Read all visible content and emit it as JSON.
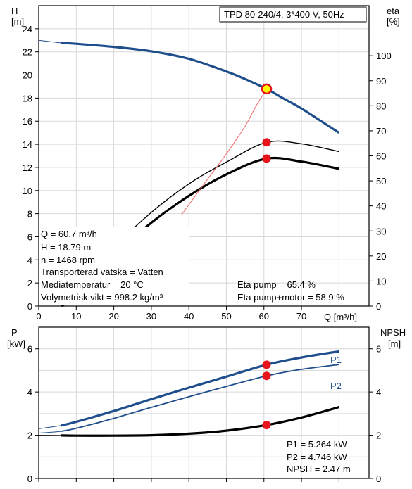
{
  "title_box": "TPD 80-240/4, 3*400 V, 50Hz",
  "colors": {
    "blue": "#1f4e8c",
    "red_marker": "#e8141c",
    "eta_thin": "#f26a6a",
    "grid": "#d8d8d8"
  },
  "top_axes": {
    "left_label_1": "H",
    "left_label_2": "[m]",
    "right_label_1": "eta",
    "right_label_2": "[%]",
    "x_label": "Q [m³/h]",
    "x_ticks": [
      "0",
      "10",
      "20",
      "30",
      "40",
      "50",
      "60",
      "70"
    ],
    "left_ticks": [
      "0",
      "2",
      "4",
      "6",
      "8",
      "10",
      "12",
      "14",
      "16",
      "18",
      "20",
      "22",
      "24"
    ],
    "right_ticks": [
      "0",
      "10",
      "20",
      "30",
      "40",
      "50",
      "60",
      "70",
      "80",
      "90",
      "100"
    ]
  },
  "bottom_axes": {
    "left_label_1": "P",
    "left_label_2": "[kW]",
    "right_label_1": "NPSH",
    "right_label_2": "[m]",
    "left_ticks": [
      "0",
      "2",
      "4",
      "6"
    ],
    "right_ticks": [
      "0",
      "2",
      "4",
      "6"
    ]
  },
  "info_left": [
    "Q = 60.7 m³/h",
    "H = 18.79 m",
    "n = 1468 rpm",
    "Transporterad vätska = Vatten",
    "Mediatemperatur = 20 °C",
    "Volymetrisk vikt = 998.2 kg/m³"
  ],
  "info_right": [
    "Eta pump = 65.4 %",
    "Eta pump+motor = 58.9 %"
  ],
  "info_bottom": [
    "P1 = 5.264 kW",
    "P2 = 4.746 kW",
    "NPSH = 2.47 m"
  ],
  "chart_data": [
    {
      "type": "line",
      "title": "TPD 80-240/4, 3*400 V, 50Hz",
      "xlabel": "Q [m³/h]",
      "ylabel": "H [m]",
      "y2label": "eta [%]",
      "xlim": [
        0,
        88
      ],
      "ylim": [
        0,
        26
      ],
      "y2lim": [
        0,
        120
      ],
      "series": [
        {
          "name": "H",
          "axis": "left",
          "x": [
            0,
            6,
            10,
            20,
            30,
            40,
            50,
            55,
            60.7,
            65,
            70,
            75,
            80
          ],
          "y": [
            23.0,
            22.78,
            22.7,
            22.43,
            22.05,
            21.4,
            20.3,
            19.65,
            18.79,
            18.0,
            17.1,
            16.05,
            15.0
          ]
        },
        {
          "name": "eta pump",
          "axis": "right",
          "x": [
            6,
            10,
            20,
            30,
            40,
            50,
            60.7,
            70,
            80
          ],
          "y": [
            0,
            6.7,
            23.4,
            37.4,
            48.8,
            57.5,
            65.4,
            64.8,
            61.7
          ]
        },
        {
          "name": "eta pump+motor",
          "axis": "right",
          "x": [
            6,
            10,
            20,
            30,
            40,
            50,
            60.7,
            70,
            80
          ],
          "y": [
            0,
            4.5,
            20.0,
            33.3,
            44.0,
            52.6,
            58.9,
            57.7,
            54.8
          ]
        },
        {
          "name": "eta duty line",
          "axis": "right",
          "x": [
            38,
            45,
            50,
            55,
            58,
            60.7
          ],
          "y": [
            36.4,
            50.7,
            60.8,
            71.9,
            80.2,
            86.5
          ]
        }
      ],
      "points": [
        {
          "name": "duty point H",
          "x": 60.7,
          "y": 18.79
        },
        {
          "name": "eta pump point",
          "x": 60.7,
          "y": 65.4
        },
        {
          "name": "eta pump+motor point",
          "x": 60.7,
          "y": 58.9
        }
      ],
      "grid": true
    },
    {
      "type": "line",
      "ylabel": "P [kW]",
      "y2label": "NPSH [m]",
      "xlim": [
        0,
        88
      ],
      "ylim": [
        0,
        7
      ],
      "y2lim": [
        0,
        7
      ],
      "series": [
        {
          "name": "P1",
          "x": [
            0,
            6,
            10,
            20,
            30,
            40,
            50,
            60.7,
            70,
            80
          ],
          "y": [
            2.3,
            2.45,
            2.62,
            3.12,
            3.67,
            4.2,
            4.71,
            5.264,
            5.6,
            5.88
          ]
        },
        {
          "name": "P2",
          "x": [
            0,
            6,
            10,
            20,
            30,
            40,
            50,
            60.7,
            70,
            80
          ],
          "y": [
            2.1,
            2.18,
            2.32,
            2.78,
            3.29,
            3.78,
            4.26,
            4.746,
            5.05,
            5.27
          ]
        },
        {
          "name": "NPSH",
          "x": [
            0,
            6,
            10,
            20,
            30,
            40,
            50,
            60.7,
            70,
            80
          ],
          "y": [
            2.0,
            1.99,
            1.98,
            1.98,
            2.0,
            2.07,
            2.21,
            2.47,
            2.82,
            3.3
          ]
        }
      ],
      "points": [
        {
          "name": "P1 point",
          "x": 60.7,
          "y": 5.264
        },
        {
          "name": "P2 point",
          "x": 60.7,
          "y": 4.746
        },
        {
          "name": "NPSH point",
          "x": 60.7,
          "y": 2.47
        }
      ],
      "grid": true
    }
  ]
}
